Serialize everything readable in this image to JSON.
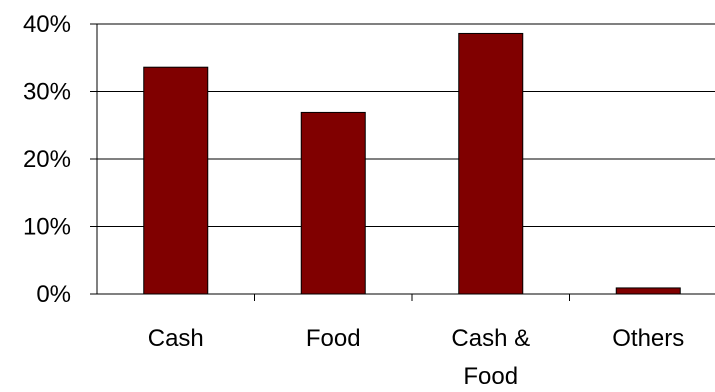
{
  "chart_data": {
    "type": "bar",
    "categories": [
      "Cash",
      "Food",
      "Cash & Food",
      "Others"
    ],
    "category_label_lines": [
      [
        "Cash"
      ],
      [
        "Food"
      ],
      [
        "Cash &",
        "Food"
      ],
      [
        "Others"
      ]
    ],
    "values": [
      33.6,
      26.9,
      38.6,
      0.9
    ],
    "ylim": [
      0,
      40
    ],
    "yticks": [
      0,
      10,
      20,
      30,
      40
    ],
    "ytick_labels": [
      "0%",
      "10%",
      "20%",
      "30%",
      "40%"
    ],
    "grid": true,
    "legend": "none",
    "title": "",
    "xlabel": "",
    "ylabel": "",
    "colors": {
      "bar_fill": "#800000",
      "bar_stroke": "#000000",
      "grid": "#000000",
      "axis": "#000000",
      "text": "#000000"
    }
  }
}
